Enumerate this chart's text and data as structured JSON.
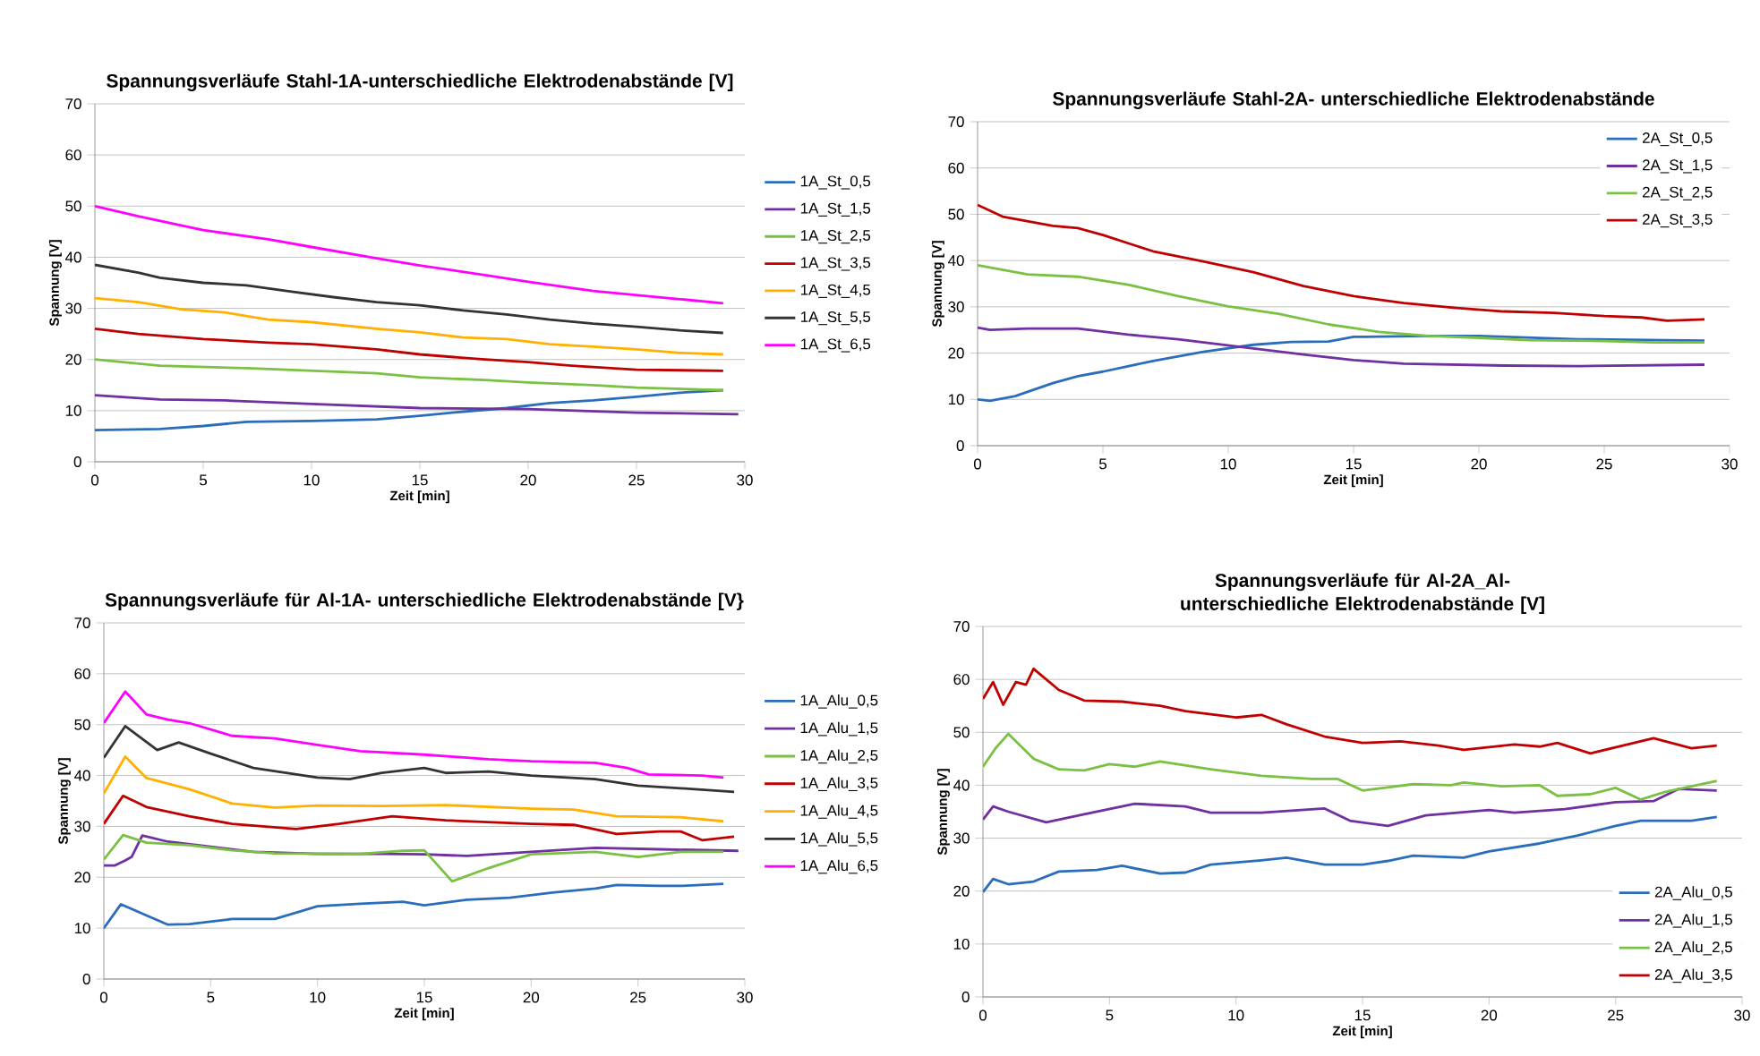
{
  "chart_data": [
    {
      "type": "line",
      "title": "Spannungsverläufe Stahl-1A-unterschiedliche Elektrodenabstände [V]",
      "xlabel": "Zeit [min]",
      "ylabel": "Spannung [V]",
      "xlim": [
        0,
        30
      ],
      "ylim": [
        0,
        70
      ],
      "xticks": [
        0,
        5,
        10,
        15,
        20,
        25,
        30
      ],
      "yticks": [
        0,
        10,
        20,
        30,
        40,
        50,
        60,
        70
      ],
      "grid": "y",
      "legend": "right",
      "marker": "none",
      "line_style": "solid",
      "series": [
        {
          "name": "1A_St_0,5",
          "color": "#2a6ebb",
          "x": [
            0,
            3,
            5,
            7,
            10,
            13,
            15,
            17,
            19,
            21,
            23,
            25,
            27,
            29
          ],
          "values": [
            6.2,
            6.4,
            7,
            7.8,
            8,
            8.3,
            9,
            9.8,
            10.5,
            11.5,
            12,
            12.7,
            13.5,
            14
          ]
        },
        {
          "name": "1A_St_1,5",
          "color": "#7030a0",
          "x": [
            0,
            3,
            6,
            10,
            15,
            20,
            25,
            29.7
          ],
          "values": [
            13,
            12.2,
            12,
            11.3,
            10.5,
            10.3,
            9.6,
            9.3
          ]
        },
        {
          "name": "1A_St_2,5",
          "color": "#7ac143",
          "x": [
            0,
            3,
            7,
            10,
            13,
            15,
            18,
            20,
            23,
            25,
            29
          ],
          "values": [
            20,
            18.8,
            18.3,
            17.8,
            17.3,
            16.5,
            16,
            15.5,
            15,
            14.5,
            14
          ]
        },
        {
          "name": "1A_St_3,5",
          "color": "#c00000",
          "x": [
            0,
            2,
            5,
            8,
            10,
            13,
            15,
            18,
            20,
            22,
            25,
            29
          ],
          "values": [
            26,
            25,
            24,
            23.3,
            23,
            22,
            21,
            20,
            19.5,
            18.8,
            18,
            17.8
          ]
        },
        {
          "name": "1A_St_4,5",
          "color": "#ffb000",
          "x": [
            0,
            2,
            4,
            6,
            8,
            10,
            13,
            15,
            17,
            19,
            21,
            23,
            25,
            27,
            29
          ],
          "values": [
            32,
            31.2,
            29.8,
            29.2,
            27.8,
            27.3,
            26,
            25.3,
            24.3,
            24,
            23,
            22.5,
            22,
            21.3,
            21
          ]
        },
        {
          "name": "1A_St_5,5",
          "color": "#333333",
          "x": [
            0,
            2,
            3,
            5,
            7,
            9,
            11,
            13,
            15,
            17,
            19,
            21,
            23,
            25,
            27,
            29
          ],
          "values": [
            38.5,
            37,
            36,
            35,
            34.5,
            33.3,
            32.2,
            31.2,
            30.6,
            29.6,
            28.8,
            27.8,
            27,
            26.4,
            25.7,
            25.2
          ]
        },
        {
          "name": "1A_St_6,5",
          "color": "#ff00ff",
          "x": [
            0,
            2,
            5,
            8,
            10,
            13,
            15,
            18,
            20,
            23,
            25,
            27,
            29
          ],
          "values": [
            50,
            48,
            45.3,
            43.5,
            42,
            39.8,
            38.4,
            36.5,
            35.2,
            33.4,
            32.6,
            31.8,
            31
          ]
        }
      ]
    },
    {
      "type": "line",
      "title": "Spannungsverläufe Stahl-2A- unterschiedliche Elektrodenabstände",
      "xlabel": "Zeit [min]",
      "ylabel": "Spannung [V]",
      "xlim": [
        0,
        30
      ],
      "ylim": [
        0,
        70
      ],
      "xticks": [
        0,
        5,
        10,
        15,
        20,
        25,
        30
      ],
      "yticks": [
        0,
        10,
        20,
        30,
        40,
        50,
        60,
        70
      ],
      "grid": "y",
      "legend": "top right",
      "marker": "none",
      "line_style": "solid",
      "series": [
        {
          "name": "2A_St_0,5",
          "color": "#2a6ebb",
          "x": [
            0,
            0.5,
            1.5,
            3,
            4,
            5,
            7,
            9,
            11,
            12.5,
            14,
            15,
            18,
            20,
            24,
            29
          ],
          "values": [
            10,
            9.7,
            10.7,
            13.5,
            15,
            16,
            18.3,
            20.3,
            21.8,
            22.4,
            22.5,
            23.5,
            23.7,
            23.7,
            23,
            22.7
          ]
        },
        {
          "name": "2A_St_1,5",
          "color": "#7030a0",
          "x": [
            0,
            0.5,
            2,
            4,
            6,
            8,
            9.5,
            11,
            13,
            15,
            17,
            19,
            21,
            24,
            29
          ],
          "values": [
            25.5,
            25,
            25.3,
            25.3,
            24,
            23,
            22,
            21,
            19.7,
            18.5,
            17.7,
            17.5,
            17.3,
            17.2,
            17.5
          ]
        },
        {
          "name": "2A_St_2,5",
          "color": "#7ac143",
          "x": [
            0,
            2,
            4,
            6,
            8,
            10,
            12,
            14,
            16,
            18,
            20,
            22,
            25,
            27,
            29
          ],
          "values": [
            39,
            37,
            36.5,
            34.8,
            32.3,
            30.1,
            28.5,
            26.2,
            24.6,
            23.7,
            23.3,
            22.8,
            22.6,
            22.3,
            22.3
          ]
        },
        {
          "name": "2A_St_3,5",
          "color": "#c00000",
          "x": [
            0,
            1,
            2,
            3,
            4,
            5,
            7,
            9,
            11,
            13,
            15,
            17,
            19,
            21,
            23,
            25,
            26.5,
            27.5,
            29
          ],
          "values": [
            52,
            49.5,
            48.5,
            47.5,
            47,
            45.5,
            42,
            39.8,
            37.5,
            34.5,
            32.3,
            30.8,
            29.8,
            29,
            28.7,
            28,
            27.7,
            27,
            27.3
          ]
        }
      ]
    },
    {
      "type": "line",
      "title": "Spannungsverläufe für Al-1A- unterschiedliche Elektrodenabstände [V}",
      "xlabel": "Zeit [min]",
      "ylabel": "Spannung [V]",
      "xlim": [
        0,
        30
      ],
      "ylim": [
        0,
        70
      ],
      "xticks": [
        0,
        5,
        10,
        15,
        20,
        25,
        30
      ],
      "yticks": [
        0,
        10,
        20,
        30,
        40,
        50,
        60,
        70
      ],
      "grid": "y",
      "legend": "right",
      "marker": "none",
      "line_style": "solid",
      "series": [
        {
          "name": "1A_Alu_0,5",
          "color": "#2a6ebb",
          "x": [
            0,
            0.8,
            2,
            3,
            4,
            6,
            8,
            10,
            12,
            14,
            15,
            17,
            19,
            21,
            23,
            24,
            26,
            27,
            29
          ],
          "values": [
            10,
            14.7,
            12.5,
            10.7,
            10.8,
            11.8,
            11.8,
            14.3,
            14.8,
            15.2,
            14.5,
            15.6,
            16,
            17,
            17.8,
            18.5,
            18.3,
            18.3,
            18.7
          ]
        },
        {
          "name": "1A_Alu_1,5",
          "color": "#7030a0",
          "x": [
            0,
            0.5,
            1,
            1.3,
            1.8,
            3,
            5,
            7,
            10,
            13,
            15,
            17,
            20,
            23,
            26,
            29.7
          ],
          "values": [
            22.3,
            22.3,
            23.3,
            24,
            28.2,
            27,
            26,
            25,
            24.6,
            24.6,
            24.5,
            24.2,
            25,
            25.8,
            25.5,
            25.2
          ]
        },
        {
          "name": "1A_Alu_2,5",
          "color": "#7ac143",
          "x": [
            0,
            0.9,
            2,
            4,
            6,
            8,
            12,
            14,
            15,
            16.3,
            18,
            20,
            23,
            25,
            27,
            29
          ],
          "values": [
            23.5,
            28.3,
            26.8,
            26.3,
            25.3,
            24.7,
            24.6,
            25.2,
            25.3,
            19.2,
            21.8,
            24.5,
            25,
            24,
            25,
            25
          ]
        },
        {
          "name": "1A_Alu_3,5",
          "color": "#c00000",
          "x": [
            0,
            0.9,
            2,
            4,
            6,
            9,
            11,
            13.5,
            16,
            20,
            22,
            24,
            26,
            27,
            28,
            29.5
          ],
          "values": [
            30.5,
            36,
            33.8,
            32,
            30.5,
            29.5,
            30.5,
            32,
            31.2,
            30.5,
            30.3,
            28.5,
            29,
            29,
            27.3,
            28
          ]
        },
        {
          "name": "1A_Alu_4,5",
          "color": "#ffb000",
          "x": [
            0,
            1,
            2,
            4,
            6,
            8,
            10,
            13,
            16,
            20,
            22,
            24,
            27,
            29
          ],
          "values": [
            36.5,
            43.7,
            39.5,
            37.3,
            34.5,
            33.7,
            34.1,
            34,
            34.2,
            33.5,
            33.3,
            32,
            31.8,
            31
          ]
        },
        {
          "name": "1A_Alu_5,5",
          "color": "#333333",
          "x": [
            0,
            1,
            2.5,
            3.5,
            5,
            7,
            10,
            11.5,
            13,
            15,
            16,
            18,
            20,
            23,
            25,
            27,
            29.5
          ],
          "values": [
            43.5,
            49.7,
            45,
            46.5,
            44.3,
            41.5,
            39.6,
            39.3,
            40.5,
            41.5,
            40.5,
            40.8,
            40,
            39.3,
            38,
            37.5,
            36.8
          ]
        },
        {
          "name": "1A_Alu_6,5",
          "color": "#ff00ff",
          "x": [
            0,
            1,
            2,
            3,
            4,
            6,
            8,
            10,
            12,
            15,
            18,
            20,
            23,
            24.5,
            25.5,
            28,
            29
          ],
          "values": [
            50.3,
            56.5,
            52,
            51,
            50.3,
            47.8,
            47.3,
            46,
            44.8,
            44.1,
            43.2,
            42.8,
            42.5,
            41.5,
            40.2,
            40,
            39.6
          ]
        }
      ]
    },
    {
      "type": "line",
      "title": "Spannungsverläufe für Al-2A_Al-unterschiedliche Elektrodenabstände [V]",
      "xlabel": "Zeit [min]",
      "ylabel": "Spannung [V]",
      "xlim": [
        0,
        30
      ],
      "ylim": [
        0,
        70
      ],
      "xticks": [
        0,
        5,
        10,
        15,
        20,
        25,
        30
      ],
      "yticks": [
        0,
        10,
        20,
        30,
        40,
        50,
        60,
        70
      ],
      "grid": "y",
      "legend": "bottom right",
      "marker": "none",
      "line_style": "solid",
      "series": [
        {
          "name": "2A_Alu_0,5",
          "color": "#2a6ebb",
          "x": [
            0,
            0.4,
            1,
            2,
            3,
            4.5,
            5.5,
            7,
            8,
            9,
            11,
            12,
            13.5,
            15,
            16,
            17,
            19,
            20,
            22,
            23.5,
            25,
            26,
            28,
            29
          ],
          "values": [
            19.8,
            22.3,
            21.3,
            21.8,
            23.7,
            24,
            24.8,
            23.3,
            23.5,
            25,
            25.8,
            26.3,
            25,
            25,
            25.7,
            26.7,
            26.3,
            27.5,
            29,
            30.5,
            32.3,
            33.3,
            33.3,
            34
          ]
        },
        {
          "name": "2A_Alu_1,5",
          "color": "#7030a0",
          "x": [
            0,
            0.4,
            1,
            2.5,
            4,
            6,
            8,
            9,
            11,
            13.5,
            14.5,
            16,
            17.5,
            20,
            21,
            23,
            25,
            26.5,
            27.5,
            29
          ],
          "values": [
            33.5,
            36,
            35,
            33,
            34.5,
            36.5,
            36,
            34.8,
            34.8,
            35.6,
            33.3,
            32.3,
            34.3,
            35.3,
            34.8,
            35.5,
            36.8,
            37,
            39.3,
            39
          ]
        },
        {
          "name": "2A_Alu_2,5",
          "color": "#7ac143",
          "x": [
            0,
            0.5,
            1,
            2,
            3,
            4,
            5,
            6,
            7,
            9,
            11,
            13,
            14,
            15,
            17,
            18.5,
            19,
            20.5,
            22,
            22.7,
            24,
            25,
            26,
            27,
            29
          ],
          "values": [
            43.5,
            47,
            49.7,
            45,
            43,
            42.8,
            44,
            43.5,
            44.5,
            43,
            41.8,
            41.2,
            41.2,
            39,
            40.2,
            40,
            40.5,
            39.8,
            40,
            38,
            38.3,
            39.5,
            37.3,
            38.8,
            40.8
          ]
        },
        {
          "name": "2A_Alu_3,5",
          "color": "#c00000",
          "x": [
            0,
            0.4,
            0.8,
            1.3,
            1.7,
            2,
            3,
            4,
            5.5,
            7,
            8,
            10,
            11,
            12,
            13.5,
            15,
            16.5,
            18,
            19,
            21,
            22,
            22.7,
            24,
            26.5,
            28,
            29
          ],
          "values": [
            56.3,
            59.5,
            55.2,
            59.5,
            59,
            62,
            58,
            56,
            55.8,
            55,
            54,
            52.8,
            53.3,
            51.5,
            49.2,
            48,
            48.3,
            47.5,
            46.7,
            47.7,
            47.3,
            48,
            46,
            48.9,
            47,
            47.5
          ]
        }
      ]
    }
  ]
}
